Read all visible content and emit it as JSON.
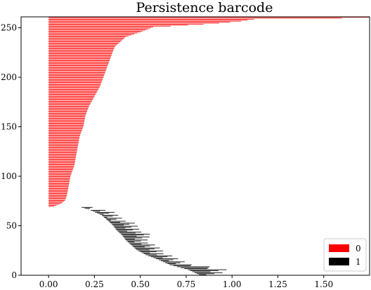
{
  "chart_data": {
    "type": "bar",
    "orientation": "horizontal",
    "title": "Persistence barcode",
    "xlabel": "",
    "ylabel": "",
    "xlim": [
      -0.15,
      1.75
    ],
    "ylim": [
      0,
      261
    ],
    "xticks": [
      "0.00",
      "0.25",
      "0.50",
      "0.75",
      "1.00",
      "1.25",
      "1.50"
    ],
    "yticks": [
      "0",
      "50",
      "100",
      "150",
      "200",
      "250"
    ],
    "grid": false,
    "legend": {
      "position": "lower-right",
      "entries": [
        {
          "label": "0",
          "color": "#ff0000"
        },
        {
          "label": "1",
          "color": "#000000"
        }
      ]
    },
    "series": [
      {
        "name": "0",
        "color": "#ff0000",
        "bars": {
          "index_start": 69,
          "index_end": 260,
          "birth": 0.0,
          "death_profile": [
            [
              69,
              0.03
            ],
            [
              72,
              0.07
            ],
            [
              75,
              0.09
            ],
            [
              80,
              0.1
            ],
            [
              90,
              0.11
            ],
            [
              100,
              0.12
            ],
            [
              110,
              0.14
            ],
            [
              120,
              0.15
            ],
            [
              130,
              0.16
            ],
            [
              140,
              0.17
            ],
            [
              150,
              0.19
            ],
            [
              160,
              0.2
            ],
            [
              170,
              0.22
            ],
            [
              180,
              0.25
            ],
            [
              190,
              0.28
            ],
            [
              200,
              0.3
            ],
            [
              210,
              0.32
            ],
            [
              220,
              0.34
            ],
            [
              230,
              0.36
            ],
            [
              235,
              0.39
            ],
            [
              240,
              0.42
            ],
            [
              245,
              0.5
            ],
            [
              250,
              0.57
            ],
            [
              252,
              0.76
            ],
            [
              254,
              0.93
            ],
            [
              256,
              1.05
            ],
            [
              258,
              1.12
            ],
            [
              259,
              1.6
            ],
            [
              260,
              1.75
            ]
          ]
        }
      },
      {
        "name": "1",
        "color": "#000000",
        "bars": {
          "index_start": 0,
          "index_end": 68,
          "profile": [
            [
              0,
              0.82,
              0.9
            ],
            [
              5,
              0.76,
              0.92
            ],
            [
              10,
              0.66,
              0.75
            ],
            [
              15,
              0.6,
              0.67
            ],
            [
              20,
              0.53,
              0.6
            ],
            [
              25,
              0.48,
              0.58
            ],
            [
              30,
              0.45,
              0.52
            ],
            [
              35,
              0.42,
              0.5
            ],
            [
              40,
              0.4,
              0.5
            ],
            [
              45,
              0.37,
              0.46
            ],
            [
              50,
              0.35,
              0.43
            ],
            [
              55,
              0.32,
              0.38
            ],
            [
              60,
              0.29,
              0.33
            ],
            [
              65,
              0.23,
              0.28
            ],
            [
              68,
              0.18,
              0.2
            ]
          ]
        }
      }
    ]
  }
}
